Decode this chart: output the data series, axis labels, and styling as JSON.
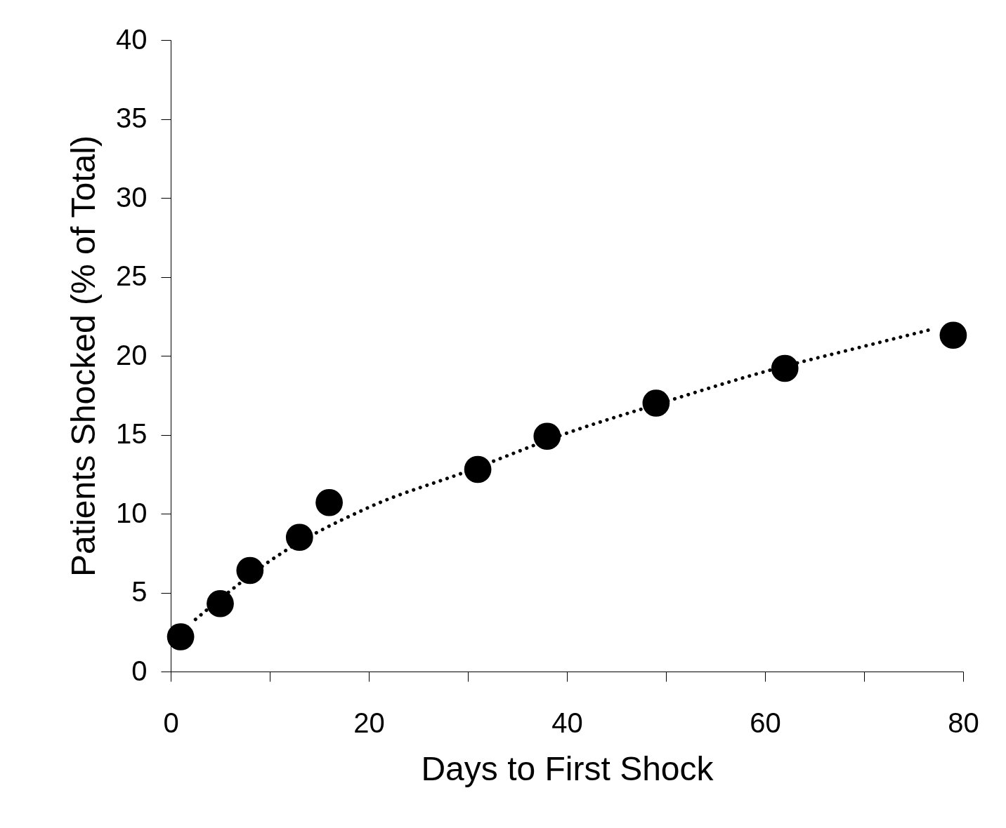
{
  "chart_data": {
    "type": "scatter",
    "xlabel": "Days to First Shock",
    "ylabel": "Patients Shocked (% of Total)",
    "xlim": [
      0,
      80
    ],
    "ylim": [
      0,
      40
    ],
    "xticks": [
      0,
      {
        "value": 10,
        "label": null
      },
      20,
      {
        "value": 30,
        "label": null
      },
      40,
      {
        "value": 50,
        "label": null
      },
      60,
      {
        "value": 70,
        "label": null
      },
      80
    ],
    "yticks": [
      0,
      5,
      10,
      15,
      20,
      25,
      30,
      35,
      40
    ],
    "grid": false,
    "series": [
      {
        "type": "scatter",
        "color": "#000000",
        "marker": "circle",
        "x": [
          1,
          5,
          8,
          13,
          16,
          31,
          38,
          49,
          62,
          79
        ],
        "values": [
          2.2,
          4.3,
          6.4,
          8.5,
          10.7,
          12.8,
          14.9,
          17.0,
          19.2,
          21.3
        ]
      },
      {
        "type": "line",
        "color": "#000000",
        "line_style": "dotted",
        "marker": "none",
        "x": [
          2.5,
          5,
          10,
          20,
          30,
          40,
          50,
          60,
          70,
          77
        ],
        "values": [
          3.3,
          4.6,
          7.0,
          10.4,
          12.7,
          15.1,
          17.1,
          19.0,
          20.6,
          21.7
        ]
      }
    ]
  }
}
